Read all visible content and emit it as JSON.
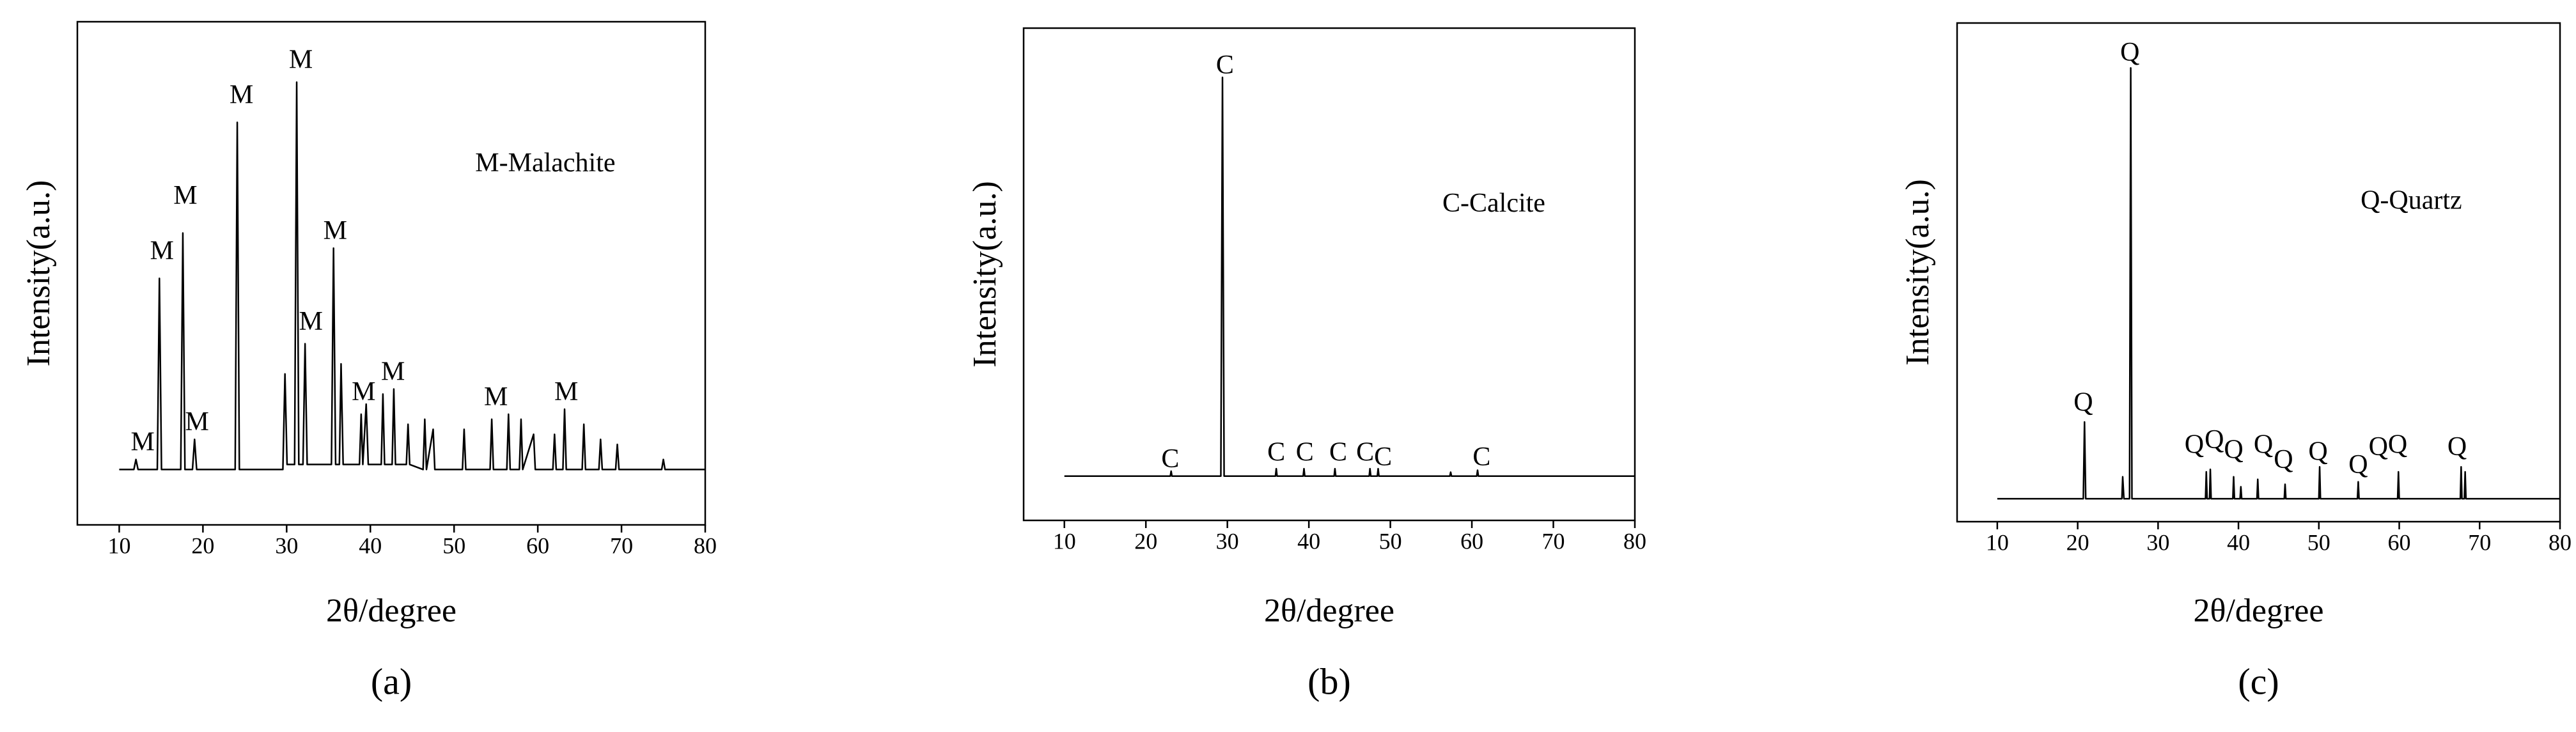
{
  "chart_data": [
    {
      "type": "line",
      "panel_label": "(a)",
      "xlabel": "2θ/degree",
      "ylabel": "Intensity(a.u.)",
      "xlim": [
        5,
        80
      ],
      "ylim": [
        0,
        100
      ],
      "xticks": [
        10,
        20,
        30,
        40,
        50,
        60,
        70,
        80
      ],
      "x": [
        10,
        11.75,
        12,
        12.25,
        14.55,
        14.8,
        15.05,
        17.35,
        17.6,
        17.85,
        18.75,
        19,
        19.25,
        23.85,
        24.1,
        24.35,
        29.55,
        29.8,
        30.05,
        30.95,
        31.2,
        31.45,
        31.95,
        32.2,
        32.45,
        35.35,
        35.6,
        35.85,
        36.3,
        36.5,
        36.75,
        38.7,
        38.9,
        39.1,
        39.5,
        39.75,
        41.3,
        41.5,
        41.7,
        42.6,
        42.8,
        43,
        44.3,
        44.5,
        44.7,
        46.3,
        46.5,
        46.7,
        47.5,
        47.7,
        51,
        51.2,
        51.4,
        54.3,
        54.5,
        54.7,
        56.3,
        56.5,
        56.7,
        57.8,
        58,
        58.2,
        59.5,
        59.7,
        61.8,
        62,
        62.2,
        63,
        63.2,
        63.4,
        65.3,
        65.5,
        65.7,
        67.3,
        67.5,
        67.7,
        69.3,
        69.5,
        69.7,
        74.8,
        75,
        75.2,
        80
      ],
      "series": [
        {
          "color": "#000000",
          "values": [
            11,
            11,
            13,
            11,
            11,
            49,
            11,
            11,
            58,
            11,
            11,
            17,
            11,
            11,
            80,
            11,
            11,
            30,
            12,
            12,
            88,
            12,
            12,
            36,
            12,
            12,
            55,
            12,
            12,
            32,
            12,
            12,
            22,
            12,
            24,
            12,
            12,
            26,
            12,
            12,
            27,
            12,
            12,
            20,
            12,
            11,
            21,
            11,
            19,
            11,
            11,
            19,
            11,
            11,
            21,
            11,
            11,
            22,
            11,
            11,
            21,
            11,
            18,
            11,
            11,
            18,
            11,
            11,
            23,
            11,
            11,
            20,
            11,
            11,
            17,
            11,
            11,
            16,
            11,
            11,
            13,
            11,
            11
          ]
        }
      ],
      "annotations": [
        {
          "text": "M-Malachite",
          "x": 60.9,
          "y": 71.5
        },
        {
          "text": "M",
          "x": 12.8,
          "y": 16
        },
        {
          "text": "M",
          "x": 15.1,
          "y": 54
        },
        {
          "text": "M",
          "x": 17.9,
          "y": 65
        },
        {
          "text": "M",
          "x": 19.3,
          "y": 20
        },
        {
          "text": "M",
          "x": 24.6,
          "y": 85
        },
        {
          "text": "M",
          "x": 31.7,
          "y": 92
        },
        {
          "text": "M",
          "x": 32.9,
          "y": 40
        },
        {
          "text": "M",
          "x": 35.8,
          "y": 58
        },
        {
          "text": "M",
          "x": 39.2,
          "y": 26
        },
        {
          "text": "M",
          "x": 42.7,
          "y": 30
        },
        {
          "text": "M",
          "x": 55,
          "y": 25
        },
        {
          "text": "M",
          "x": 63.4,
          "y": 26
        }
      ]
    },
    {
      "type": "line",
      "panel_label": "(b)",
      "xlabel": "2θ/degree",
      "ylabel": "Intensity(a.u.)",
      "xlim": [
        5,
        80
      ],
      "ylim": [
        0,
        100
      ],
      "xticks": [
        10,
        20,
        30,
        40,
        50,
        60,
        70,
        80
      ],
      "x": [
        10,
        23,
        23.1,
        23.2,
        29.2,
        29.4,
        29.6,
        35.9,
        36,
        36.1,
        39.3,
        39.4,
        39.5,
        43.1,
        43.2,
        43.3,
        47.4,
        47.5,
        47.6,
        48.4,
        48.5,
        48.6,
        57.3,
        57.4,
        57.5,
        60.6,
        60.7,
        60.8,
        80
      ],
      "series": [
        {
          "color": "#000000",
          "values": [
            9,
            9,
            10,
            9,
            9,
            90,
            9,
            9,
            10.5,
            9,
            9,
            10.5,
            9,
            9,
            10.5,
            9,
            9,
            10.5,
            9,
            9,
            10.5,
            9,
            9,
            9.8,
            9,
            9,
            10.2,
            9,
            9
          ]
        }
      ],
      "annotations": [
        {
          "text": "C-Calcite",
          "x": 62.7,
          "y": 64
        },
        {
          "text": "C",
          "x": 29.7,
          "y": 92
        },
        {
          "text": "C",
          "x": 23,
          "y": 12
        },
        {
          "text": "C",
          "x": 36,
          "y": 13.4
        },
        {
          "text": "C",
          "x": 39.5,
          "y": 13.4
        },
        {
          "text": "C",
          "x": 43.6,
          "y": 13.4
        },
        {
          "text": "C",
          "x": 46.9,
          "y": 13.4
        },
        {
          "text": "C",
          "x": 49.1,
          "y": 12.4
        },
        {
          "text": "C",
          "x": 61.2,
          "y": 12.4
        }
      ]
    },
    {
      "type": "line",
      "panel_label": "(c)",
      "xlabel": "2θ/degree",
      "ylabel": "Intensity(a.u.)",
      "xlim": [
        5,
        80
      ],
      "ylim": [
        0,
        100
      ],
      "xticks": [
        10,
        20,
        30,
        40,
        50,
        60,
        70,
        80
      ],
      "x": [
        10,
        20.7,
        20.85,
        21,
        25.5,
        25.6,
        25.75,
        26.45,
        26.6,
        26.75,
        35.9,
        36,
        36.1,
        36.4,
        36.5,
        36.6,
        39.3,
        39.4,
        39.5,
        40.2,
        40.3,
        40.4,
        42.3,
        42.4,
        42.5,
        45.7,
        45.8,
        45.9,
        50,
        50.1,
        50.2,
        54.8,
        54.9,
        55,
        59.8,
        59.9,
        60,
        67.6,
        67.7,
        67.8,
        68.1,
        68.2,
        68.3,
        80
      ],
      "series": [
        {
          "color": "#000000",
          "values": [
            4.6,
            4.6,
            20,
            4.6,
            4.6,
            9,
            4.6,
            4.6,
            91,
            4.6,
            4.6,
            10,
            4.6,
            4.6,
            10.5,
            4.6,
            4.6,
            9,
            4.6,
            4.6,
            7,
            4.6,
            4.6,
            8.5,
            4.6,
            4.6,
            7.5,
            4.6,
            4.6,
            11,
            4.6,
            4.6,
            8,
            4.6,
            4.6,
            10,
            4.6,
            4.6,
            11,
            4.6,
            4.6,
            10,
            4.6,
            4.6
          ]
        }
      ],
      "annotations": [
        {
          "text": "Q-Quartz",
          "x": 61.5,
          "y": 64
        },
        {
          "text": "Q",
          "x": 26.5,
          "y": 93.7
        },
        {
          "text": "Q",
          "x": 20.7,
          "y": 23.5
        },
        {
          "text": "Q",
          "x": 34.5,
          "y": 15
        },
        {
          "text": "Q",
          "x": 37,
          "y": 16
        },
        {
          "text": "Q",
          "x": 39.4,
          "y": 14
        },
        {
          "text": "Q",
          "x": 43.1,
          "y": 15
        },
        {
          "text": "Q",
          "x": 45.6,
          "y": 12
        },
        {
          "text": "Q",
          "x": 49.9,
          "y": 13.6
        },
        {
          "text": "Q",
          "x": 54.9,
          "y": 11
        },
        {
          "text": "Q",
          "x": 57.4,
          "y": 14.6
        },
        {
          "text": "Q",
          "x": 59.8,
          "y": 15
        },
        {
          "text": "Q",
          "x": 67.2,
          "y": 14.6
        }
      ]
    }
  ]
}
